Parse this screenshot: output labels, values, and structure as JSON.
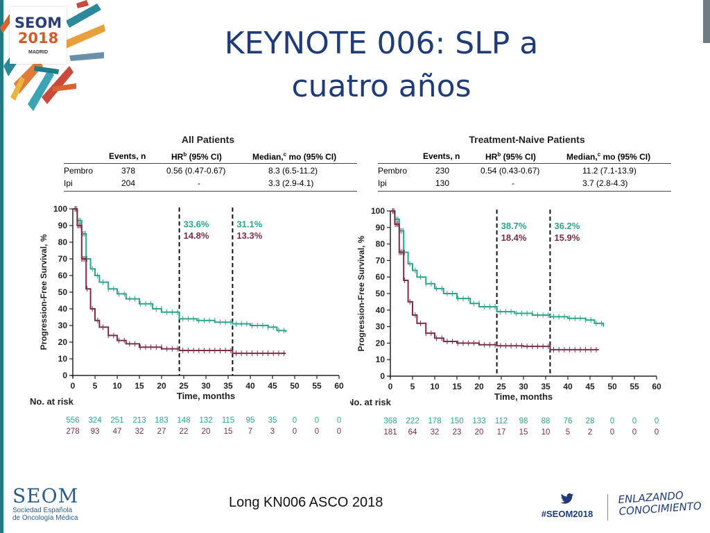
{
  "slide_title": "KEYNOTE 006: SLP a cuatro años",
  "logo": {
    "main": "SEOM",
    "year": "2018",
    "city": "MADRID"
  },
  "footer": {
    "org": "SEOM",
    "org_sub1": "Sociedad Española",
    "org_sub2": "de Oncología Médica",
    "center": "Long KN006 ASCO 2018",
    "hashtag": "#SEOM2018",
    "slogan1": "ENLAZANDO",
    "slogan2": "CONOCIMIENTO"
  },
  "table_headers": {
    "events": "Events, n",
    "hr": "HR",
    "hr_sup": "b",
    "hr_rest": " (95% CI)",
    "median": "Median,",
    "median_sup": "c",
    "median_rest": " mo (95% CI)"
  },
  "colors": {
    "pembro": "#2aa58d",
    "ipi": "#7b2d47",
    "title": "#1f3c78"
  },
  "chart_data": [
    {
      "type": "line",
      "title": "All Patients",
      "ylabel": "Progression-Free Survival, %",
      "xlabel": "Time, months",
      "xlim": [
        0,
        60
      ],
      "ylim": [
        0,
        100
      ],
      "xticks": [
        0,
        5,
        10,
        15,
        20,
        25,
        30,
        35,
        40,
        45,
        50,
        55,
        60
      ],
      "yticks": [
        0,
        10,
        20,
        30,
        40,
        50,
        60,
        70,
        80,
        90,
        100
      ],
      "landmarks": [
        24,
        36
      ],
      "annotations": [
        {
          "x": 24,
          "pembro": "33.6%",
          "ipi": "14.8%"
        },
        {
          "x": 36,
          "pembro": "31.1%",
          "ipi": "13.3%"
        }
      ],
      "table": [
        {
          "arm": "Pembro",
          "events": "378",
          "hr": "0.56 (0.47-0.67)",
          "median": "8.3 (6.5-11.2)"
        },
        {
          "arm": "Ipi",
          "events": "204",
          "hr": "-",
          "median": "3.3 (2.9-4.1)"
        }
      ],
      "risk_label": "No. at risk",
      "risk": {
        "pembro": [
          "556",
          "324",
          "251",
          "213",
          "183",
          "148",
          "132",
          "115",
          "95",
          "35",
          "0",
          "0",
          "0"
        ],
        "ipi": [
          "278",
          "93",
          "47",
          "32",
          "27",
          "22",
          "20",
          "15",
          "7",
          "3",
          "0",
          "0",
          "0"
        ]
      },
      "series": [
        {
          "name": "Pembro",
          "points": [
            [
              0,
              100
            ],
            [
              1,
              93
            ],
            [
              2,
              85
            ],
            [
              3,
              70
            ],
            [
              4,
              64
            ],
            [
              5,
              60
            ],
            [
              6,
              56
            ],
            [
              8,
              52
            ],
            [
              10,
              49
            ],
            [
              12,
              46
            ],
            [
              15,
              43
            ],
            [
              18,
              40
            ],
            [
              20,
              38
            ],
            [
              24,
              34
            ],
            [
              28,
              33
            ],
            [
              32,
              32
            ],
            [
              36,
              31
            ],
            [
              40,
              30
            ],
            [
              44,
              29
            ],
            [
              46,
              27
            ],
            [
              48,
              26
            ]
          ]
        },
        {
          "name": "Ipi",
          "points": [
            [
              0,
              100
            ],
            [
              1,
              90
            ],
            [
              2,
              70
            ],
            [
              3,
              52
            ],
            [
              4,
              40
            ],
            [
              5,
              33
            ],
            [
              6,
              29
            ],
            [
              8,
              24
            ],
            [
              10,
              21
            ],
            [
              12,
              19
            ],
            [
              15,
              17
            ],
            [
              20,
              16
            ],
            [
              24,
              15
            ],
            [
              30,
              15
            ],
            [
              36,
              13.3
            ],
            [
              40,
              13.3
            ],
            [
              48,
              13.3
            ]
          ]
        }
      ]
    },
    {
      "type": "line",
      "title": "Treatment-Naive Patients",
      "ylabel": "Progression-Free Survival, %",
      "xlabel": "Time, months",
      "xlim": [
        0,
        60
      ],
      "ylim": [
        0,
        100
      ],
      "xticks": [
        0,
        5,
        10,
        15,
        20,
        25,
        30,
        35,
        40,
        45,
        50,
        55,
        60
      ],
      "yticks": [
        0,
        10,
        20,
        30,
        40,
        50,
        60,
        70,
        80,
        90,
        100
      ],
      "landmarks": [
        24,
        36
      ],
      "annotations": [
        {
          "x": 24,
          "pembro": "38.7%",
          "ipi": "18.4%"
        },
        {
          "x": 36,
          "pembro": "36.2%",
          "ipi": "15.9%"
        }
      ],
      "table": [
        {
          "arm": "Pembro",
          "events": "230",
          "hr": "0.54 (0.43-0.67)",
          "median": "11.2 (7.1-13.9)"
        },
        {
          "arm": "Ipi",
          "events": "130",
          "hr": "-",
          "median": "3.7 (2.8-4.3)"
        }
      ],
      "risk_label": "No. at risk",
      "risk": {
        "pembro": [
          "368",
          "222",
          "178",
          "150",
          "133",
          "112",
          "98",
          "88",
          "76",
          "28",
          "0",
          "0",
          "0"
        ],
        "ipi": [
          "181",
          "64",
          "32",
          "23",
          "20",
          "17",
          "15",
          "10",
          "5",
          "2",
          "0",
          "0",
          "0"
        ]
      },
      "series": [
        {
          "name": "Pembro",
          "points": [
            [
              0,
              100
            ],
            [
              1,
              95
            ],
            [
              2,
              88
            ],
            [
              3,
              75
            ],
            [
              4,
              68
            ],
            [
              5,
              64
            ],
            [
              6,
              60
            ],
            [
              8,
              56
            ],
            [
              10,
              53
            ],
            [
              12,
              50
            ],
            [
              15,
              47
            ],
            [
              18,
              44
            ],
            [
              20,
              42
            ],
            [
              24,
              39
            ],
            [
              28,
              38
            ],
            [
              32,
              37
            ],
            [
              36,
              36
            ],
            [
              40,
              35
            ],
            [
              44,
              34
            ],
            [
              46,
              32
            ],
            [
              48,
              30
            ]
          ]
        },
        {
          "name": "Ipi",
          "points": [
            [
              0,
              100
            ],
            [
              1,
              92
            ],
            [
              2,
              75
            ],
            [
              3,
              58
            ],
            [
              4,
              45
            ],
            [
              5,
              37
            ],
            [
              6,
              32
            ],
            [
              8,
              26
            ],
            [
              10,
              23
            ],
            [
              12,
              21
            ],
            [
              15,
              20
            ],
            [
              20,
              19
            ],
            [
              24,
              18.4
            ],
            [
              30,
              18
            ],
            [
              36,
              16
            ],
            [
              40,
              16
            ],
            [
              47,
              16
            ]
          ]
        }
      ]
    }
  ]
}
